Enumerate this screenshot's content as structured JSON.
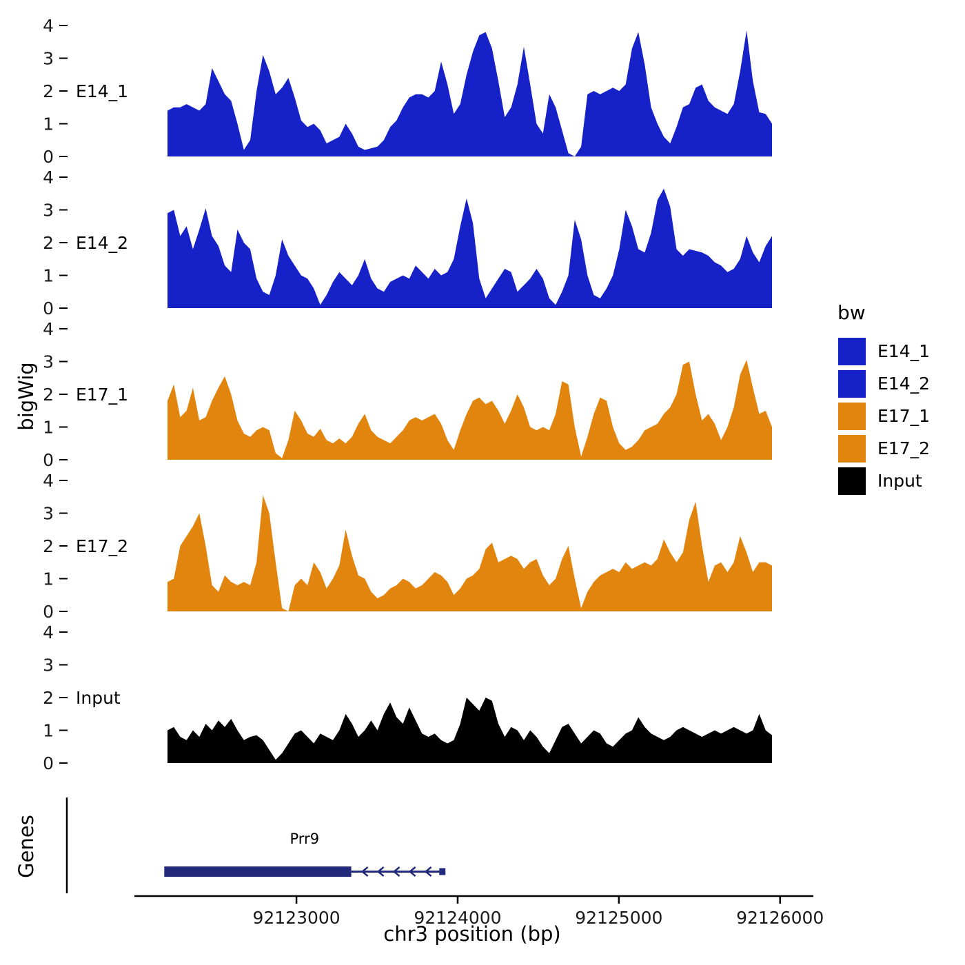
{
  "axes": {
    "y_title": "bigWig",
    "x_title": "chr3 position (bp)",
    "y_ticks": [
      0,
      1,
      2,
      3,
      4
    ],
    "y_max": 4,
    "x_ticks": [
      92123000,
      92124000,
      92125000,
      92126000
    ],
    "x_tick_labels": [
      "92123000",
      "92124000",
      "92125000",
      "92126000"
    ]
  },
  "legend": {
    "title": "bw",
    "items": [
      {
        "label": "E14_1",
        "color": "#1621C8"
      },
      {
        "label": "E14_2",
        "color": "#1621C8"
      },
      {
        "label": "E17_1",
        "color": "#E2850F"
      },
      {
        "label": "E17_2",
        "color": "#E2850F"
      },
      {
        "label": "Input",
        "color": "#000000"
      }
    ]
  },
  "genes": {
    "title": "Genes",
    "gene": {
      "name": "Prr9",
      "strand": "-",
      "thick_start": 92122180,
      "thick_end": 92123340,
      "end": 92123920,
      "color": "#232A7C"
    }
  },
  "chart_data": {
    "type": "area",
    "title": "",
    "xlabel": "chr3 position (bp)",
    "ylabel": "bigWig",
    "x_start": 92122200,
    "x_end": 92125950,
    "n_points": 96,
    "ylim": [
      0,
      4
    ],
    "facets": [
      "E14_1",
      "E14_2",
      "E17_1",
      "E17_2",
      "Input"
    ],
    "legend_position": "right",
    "grid": false,
    "series": [
      {
        "name": "E14_1",
        "color": "#1621C8",
        "values": [
          1.4,
          1.5,
          1.5,
          1.6,
          1.5,
          1.4,
          1.6,
          2.7,
          2.3,
          1.9,
          1.7,
          1.0,
          0.2,
          0.5,
          2.0,
          3.1,
          2.6,
          1.9,
          2.1,
          2.4,
          1.8,
          1.1,
          0.9,
          1.0,
          0.8,
          0.4,
          0.5,
          0.6,
          1.0,
          0.7,
          0.3,
          0.2,
          0.25,
          0.3,
          0.5,
          0.9,
          1.1,
          1.5,
          1.8,
          1.9,
          1.9,
          1.8,
          2.0,
          2.9,
          2.2,
          1.3,
          1.6,
          2.5,
          3.2,
          3.7,
          3.8,
          3.3,
          2.3,
          1.2,
          1.5,
          2.2,
          3.35,
          2.2,
          1.0,
          0.7,
          1.9,
          1.5,
          0.8,
          0.1,
          0.0,
          0.3,
          1.9,
          2.0,
          1.9,
          2.0,
          2.1,
          2.0,
          2.2,
          3.3,
          3.8,
          2.8,
          1.5,
          1.0,
          0.6,
          0.4,
          0.9,
          1.5,
          1.6,
          2.1,
          2.2,
          1.7,
          1.5,
          1.4,
          1.3,
          1.6,
          2.6,
          3.85,
          2.3,
          1.35,
          1.3,
          1.0
        ]
      },
      {
        "name": "E14_2",
        "color": "#1621C8",
        "values": [
          2.9,
          3.0,
          2.2,
          2.5,
          1.8,
          2.4,
          3.05,
          2.2,
          1.9,
          1.3,
          1.1,
          2.4,
          2.0,
          1.8,
          0.9,
          0.5,
          0.4,
          1.0,
          2.1,
          1.6,
          1.3,
          1.0,
          0.9,
          0.6,
          0.1,
          0.4,
          0.8,
          1.1,
          0.9,
          0.7,
          1.0,
          1.5,
          0.9,
          0.6,
          0.5,
          0.8,
          0.9,
          1.0,
          0.9,
          1.3,
          1.1,
          0.9,
          1.2,
          1.0,
          1.1,
          1.5,
          2.5,
          3.35,
          2.6,
          0.9,
          0.3,
          0.6,
          0.9,
          1.2,
          1.1,
          0.5,
          0.7,
          0.9,
          1.2,
          0.9,
          0.3,
          0.1,
          0.5,
          1.0,
          2.7,
          2.1,
          1.0,
          0.4,
          0.3,
          0.6,
          1.0,
          1.8,
          3.0,
          2.5,
          1.8,
          1.7,
          2.3,
          3.3,
          3.65,
          3.1,
          1.8,
          1.6,
          1.8,
          1.75,
          1.7,
          1.6,
          1.4,
          1.3,
          1.1,
          1.2,
          1.5,
          2.2,
          1.7,
          1.4,
          1.9,
          2.2
        ]
      },
      {
        "name": "E17_1",
        "color": "#E2850F",
        "values": [
          1.8,
          2.3,
          1.3,
          1.5,
          2.2,
          1.2,
          1.3,
          1.8,
          2.2,
          2.55,
          2.0,
          1.2,
          0.8,
          0.7,
          0.9,
          1.0,
          0.9,
          0.2,
          0.05,
          0.6,
          1.5,
          1.2,
          0.8,
          0.7,
          0.95,
          0.6,
          0.5,
          0.65,
          0.5,
          0.7,
          1.1,
          1.4,
          0.9,
          0.7,
          0.6,
          0.5,
          0.7,
          0.9,
          1.2,
          1.3,
          1.2,
          1.3,
          1.4,
          1.1,
          0.6,
          0.3,
          0.9,
          1.4,
          1.8,
          1.9,
          1.7,
          1.8,
          1.5,
          1.1,
          1.5,
          2.0,
          1.6,
          1.0,
          0.9,
          1.0,
          0.9,
          1.4,
          2.4,
          2.3,
          1.0,
          0.1,
          0.7,
          1.4,
          1.9,
          1.8,
          1.0,
          0.5,
          0.3,
          0.4,
          0.6,
          0.9,
          1.0,
          1.1,
          1.4,
          1.6,
          2.0,
          2.9,
          3.0,
          2.0,
          1.2,
          1.4,
          1.1,
          0.6,
          1.0,
          1.6,
          2.6,
          3.05,
          2.2,
          1.4,
          1.5,
          1.0
        ]
      },
      {
        "name": "E17_2",
        "color": "#E2850F",
        "values": [
          0.9,
          1.0,
          2.0,
          2.3,
          2.6,
          3.0,
          2.0,
          0.8,
          0.6,
          1.1,
          0.9,
          0.8,
          0.9,
          0.8,
          1.5,
          3.55,
          3.0,
          1.5,
          0.1,
          0.0,
          0.8,
          1.0,
          0.8,
          1.5,
          1.2,
          0.7,
          1.0,
          1.4,
          2.5,
          1.7,
          1.1,
          1.0,
          0.6,
          0.4,
          0.5,
          0.7,
          0.8,
          1.0,
          0.9,
          0.7,
          0.8,
          1.0,
          1.2,
          1.1,
          0.9,
          0.5,
          0.7,
          1.0,
          1.1,
          1.3,
          1.9,
          2.1,
          1.5,
          1.6,
          1.7,
          1.6,
          1.3,
          1.5,
          1.6,
          1.1,
          0.8,
          1.0,
          1.6,
          2.0,
          1.0,
          0.1,
          0.6,
          0.9,
          1.1,
          1.2,
          1.3,
          1.2,
          1.5,
          1.3,
          1.4,
          1.5,
          1.4,
          1.6,
          2.2,
          1.8,
          1.5,
          1.8,
          2.8,
          3.35,
          2.0,
          0.9,
          1.4,
          1.5,
          1.2,
          1.5,
          2.3,
          1.8,
          1.2,
          1.5,
          1.5,
          1.4
        ]
      },
      {
        "name": "Input",
        "color": "#000000",
        "values": [
          1.0,
          1.1,
          0.8,
          0.7,
          1.0,
          0.8,
          1.2,
          1.0,
          1.3,
          1.1,
          1.35,
          1.0,
          0.7,
          0.8,
          0.85,
          0.7,
          0.4,
          0.1,
          0.3,
          0.6,
          0.9,
          1.0,
          0.8,
          0.6,
          0.9,
          0.8,
          0.7,
          1.0,
          1.5,
          1.2,
          0.8,
          1.0,
          1.3,
          1.0,
          1.5,
          1.85,
          1.4,
          1.2,
          1.7,
          1.3,
          0.9,
          0.8,
          0.9,
          0.7,
          0.6,
          0.7,
          1.2,
          2.0,
          1.8,
          1.6,
          2.0,
          1.9,
          1.2,
          0.8,
          1.1,
          1.0,
          0.7,
          1.0,
          0.8,
          0.5,
          0.3,
          0.7,
          1.1,
          1.2,
          0.9,
          0.6,
          0.8,
          1.0,
          0.9,
          0.6,
          0.5,
          0.7,
          0.9,
          1.0,
          1.4,
          1.1,
          0.9,
          0.8,
          0.7,
          0.8,
          1.0,
          1.1,
          1.0,
          0.9,
          0.8,
          0.9,
          1.0,
          0.9,
          1.0,
          1.1,
          1.0,
          0.9,
          1.0,
          1.5,
          1.0,
          0.85
        ]
      }
    ]
  }
}
